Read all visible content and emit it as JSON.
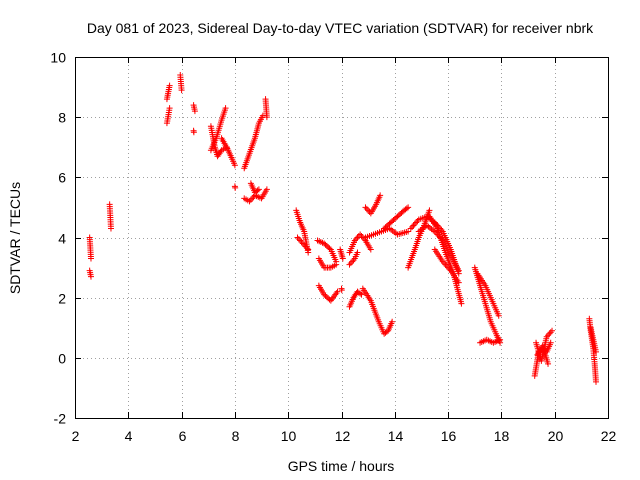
{
  "chart_data": {
    "type": "scatter",
    "title": "Day 081 of 2023, Sidereal Day-to-day VTEC variation (SDTVAR) for receiver nbrk",
    "xlabel": "GPS time / hours",
    "ylabel": "SDTVAR / TECUs",
    "xlim": [
      2,
      22
    ],
    "ylim": [
      -2,
      10
    ],
    "x_ticks": [
      2,
      4,
      6,
      8,
      10,
      12,
      14,
      16,
      18,
      20,
      22
    ],
    "y_ticks": [
      -2,
      0,
      2,
      4,
      6,
      8,
      10
    ],
    "x_tick_labels": [
      "2",
      "4",
      "6",
      "8",
      "10",
      "12",
      "14",
      "16",
      "18",
      "20",
      "22"
    ],
    "y_tick_labels": [
      "-2",
      "0",
      "2",
      "4",
      "6",
      "8",
      "10"
    ],
    "grid": true,
    "marker": "+",
    "color": "#ff0000",
    "series": [
      {
        "name": "SDTVAR",
        "segments": [
          {
            "x": [
              2.55,
              2.6
            ],
            "y": [
              4.0,
              3.3
            ]
          },
          {
            "x": [
              2.55,
              2.6
            ],
            "y": [
              2.9,
              2.7
            ]
          },
          {
            "x": [
              3.3,
              3.35
            ],
            "y": [
              5.1,
              4.3
            ]
          },
          {
            "x": [
              5.45,
              5.55
            ],
            "y": [
              8.6,
              9.05
            ]
          },
          {
            "x": [
              5.45,
              5.55
            ],
            "y": [
              7.8,
              8.3
            ]
          },
          {
            "x": [
              5.95,
              6.0
            ],
            "y": [
              9.4,
              8.9
            ]
          },
          {
            "x": [
              6.45,
              6.5
            ],
            "y": [
              8.4,
              8.2
            ]
          },
          {
            "x": [
              6.45
            ],
            "y": [
              7.55
            ]
          },
          {
            "x": [
              7.1,
              7.3,
              7.5,
              7.65
            ],
            "y": [
              6.9,
              7.3,
              7.9,
              8.3
            ]
          },
          {
            "x": [
              7.1,
              7.25,
              7.35,
              7.5,
              7.7
            ],
            "y": [
              7.7,
              7.0,
              6.7,
              6.9,
              7.0
            ]
          },
          {
            "x": [
              7.5,
              7.75,
              7.9,
              8.0
            ],
            "y": [
              7.3,
              6.9,
              6.6,
              6.4
            ]
          },
          {
            "x": [
              8.0
            ],
            "y": [
              5.7
            ]
          },
          {
            "x": [
              8.35,
              8.55,
              8.75,
              8.9,
              9.05
            ],
            "y": [
              6.3,
              6.8,
              7.3,
              7.8,
              8.05
            ]
          },
          {
            "x": [
              8.35,
              8.55,
              8.75,
              9.0,
              9.2
            ],
            "y": [
              5.3,
              5.2,
              5.4,
              5.3,
              5.6
            ]
          },
          {
            "x": [
              8.6,
              8.75,
              8.9
            ],
            "y": [
              5.8,
              5.5,
              5.6
            ]
          },
          {
            "x": [
              9.15,
              9.2
            ],
            "y": [
              8.6,
              8.0
            ]
          },
          {
            "x": [
              10.3,
              10.45,
              10.6,
              10.75
            ],
            "y": [
              4.9,
              4.5,
              4.2,
              3.5
            ]
          },
          {
            "x": [
              10.35,
              10.55,
              10.75
            ],
            "y": [
              4.0,
              3.8,
              3.6
            ]
          },
          {
            "x": [
              11.1,
              11.35,
              11.6,
              11.8
            ],
            "y": [
              3.9,
              3.8,
              3.6,
              3.2
            ]
          },
          {
            "x": [
              11.15,
              11.35,
              11.6,
              11.8
            ],
            "y": [
              3.3,
              3.0,
              3.0,
              3.1
            ]
          },
          {
            "x": [
              11.15,
              11.35,
              11.6,
              11.85
            ],
            "y": [
              2.4,
              2.1,
              1.9,
              2.2
            ]
          },
          {
            "x": [
              11.95,
              12.05
            ],
            "y": [
              3.6,
              3.3
            ]
          },
          {
            "x": [
              12.0
            ],
            "y": [
              2.3
            ]
          },
          {
            "x": [
              12.3,
              12.5,
              12.7,
              12.9,
              13.1
            ],
            "y": [
              3.5,
              3.9,
              4.1,
              3.9,
              3.6
            ]
          },
          {
            "x": [
              12.3,
              12.5,
              12.6
            ],
            "y": [
              3.1,
              3.3,
              3.5
            ]
          },
          {
            "x": [
              12.3,
              12.45,
              12.6,
              12.75
            ],
            "y": [
              1.7,
              2.0,
              2.2,
              2.1
            ]
          },
          {
            "x": [
              12.8,
              13.1,
              13.4,
              13.6,
              13.75,
              13.9
            ],
            "y": [
              2.3,
              1.9,
              1.2,
              0.8,
              0.9,
              1.2
            ]
          },
          {
            "x": [
              12.9,
              13.1,
              13.3,
              13.45
            ],
            "y": [
              5.0,
              4.8,
              5.1,
              5.4
            ]
          },
          {
            "x": [
              12.9,
              13.2,
              13.5,
              13.8,
              14.1,
              14.5
            ],
            "y": [
              4.0,
              4.1,
              4.2,
              4.3,
              4.1,
              4.2
            ]
          },
          {
            "x": [
              13.6,
              13.85,
              14.1,
              14.35,
              14.5
            ],
            "y": [
              4.3,
              4.5,
              4.7,
              4.9,
              5.0
            ]
          },
          {
            "x": [
              14.5,
              14.75,
              14.9,
              15.1,
              15.3
            ],
            "y": [
              3.0,
              3.6,
              4.0,
              4.4,
              4.9
            ]
          },
          {
            "x": [
              14.6,
              14.9,
              15.2,
              15.5,
              15.8,
              16.1,
              16.4
            ],
            "y": [
              4.3,
              4.6,
              4.7,
              4.5,
              4.2,
              3.6,
              2.8
            ]
          },
          {
            "x": [
              14.9,
              15.2,
              15.5,
              15.8,
              16.1,
              16.4
            ],
            "y": [
              4.2,
              4.4,
              4.2,
              3.9,
              3.4,
              2.9
            ]
          },
          {
            "x": [
              15.3,
              15.6,
              15.9,
              16.2,
              16.5
            ],
            "y": [
              4.7,
              4.3,
              3.5,
              2.8,
              1.8
            ]
          },
          {
            "x": [
              15.5,
              15.8,
              16.1,
              16.4
            ],
            "y": [
              3.6,
              3.2,
              2.9,
              2.5
            ]
          },
          {
            "x": [
              17.0,
              17.2,
              17.4,
              17.6,
              17.8,
              17.95
            ],
            "y": [
              3.0,
              2.4,
              1.8,
              1.2,
              0.8,
              0.5
            ]
          },
          {
            "x": [
              17.1,
              17.4,
              17.7,
              17.9
            ],
            "y": [
              2.8,
              2.4,
              1.8,
              1.4
            ]
          },
          {
            "x": [
              17.2,
              17.45,
              17.7,
              17.95
            ],
            "y": [
              0.5,
              0.6,
              0.5,
              0.6
            ]
          },
          {
            "x": [
              19.25,
              19.4,
              19.55,
              19.7,
              19.85
            ],
            "y": [
              -0.6,
              0.2,
              0.3,
              0.2,
              0.5
            ]
          },
          {
            "x": [
              19.3,
              19.5,
              19.7,
              19.9
            ],
            "y": [
              0.5,
              -0.1,
              0.7,
              0.9
            ]
          },
          {
            "x": [
              19.35,
              19.55,
              19.75
            ],
            "y": [
              0.1,
              0.4,
              -0.2
            ]
          },
          {
            "x": [
              21.3,
              21.35,
              21.45,
              21.5,
              21.55
            ],
            "y": [
              1.3,
              0.9,
              0.3,
              -0.2,
              -0.8
            ]
          },
          {
            "x": [
              21.35,
              21.45,
              21.55
            ],
            "y": [
              1.0,
              0.6,
              0.2
            ]
          }
        ]
      }
    ]
  }
}
